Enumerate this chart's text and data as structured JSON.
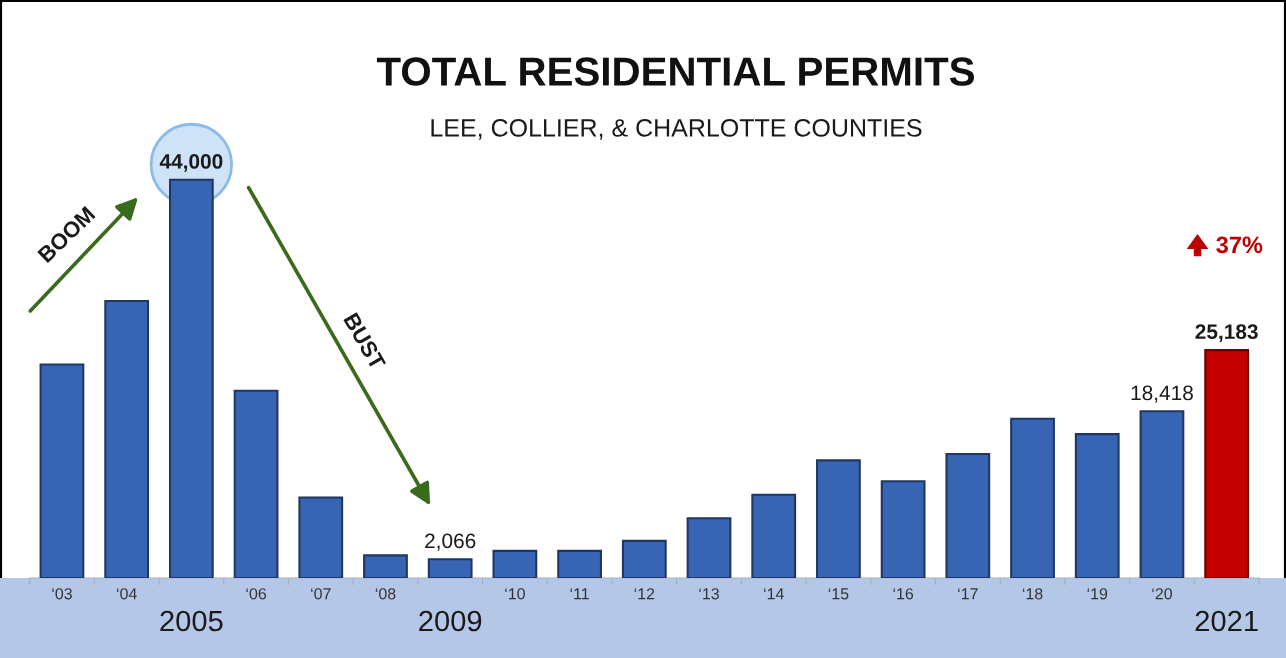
{
  "chart_data": {
    "type": "bar",
    "title": "TOTAL RESIDENTIAL PERMITS",
    "subtitle": "LEE, COLLIER, & CHARLOTTE COUNTIES",
    "categories": [
      "‘03",
      "‘04",
      "2005",
      "‘06",
      "‘07",
      "‘08",
      "2009",
      "‘10",
      "‘11",
      "‘12",
      "‘13",
      "‘14",
      "‘15",
      "‘16",
      "‘17",
      "‘18",
      "‘19",
      "‘20",
      "2021"
    ],
    "values": [
      23600,
      30600,
      44000,
      20700,
      8900,
      2500,
      2066,
      3000,
      3000,
      4100,
      6600,
      9200,
      13000,
      10700,
      13700,
      17600,
      15900,
      18418,
      25183
    ],
    "colors": [
      "#3864b4",
      "#3864b4",
      "#3864b4",
      "#3864b4",
      "#3864b4",
      "#3864b4",
      "#3864b4",
      "#3864b4",
      "#3864b4",
      "#3864b4",
      "#3864b4",
      "#3864b4",
      "#3864b4",
      "#3864b4",
      "#3864b4",
      "#3864b4",
      "#3864b4",
      "#3864b4",
      "#c50000"
    ],
    "value_labels": [
      null,
      null,
      "44,000",
      null,
      null,
      null,
      "2,066",
      null,
      null,
      null,
      null,
      null,
      null,
      null,
      null,
      null,
      null,
      "18,418",
      "25,183"
    ],
    "annotations": [
      "BOOM",
      "BUST",
      "37%"
    ]
  }
}
